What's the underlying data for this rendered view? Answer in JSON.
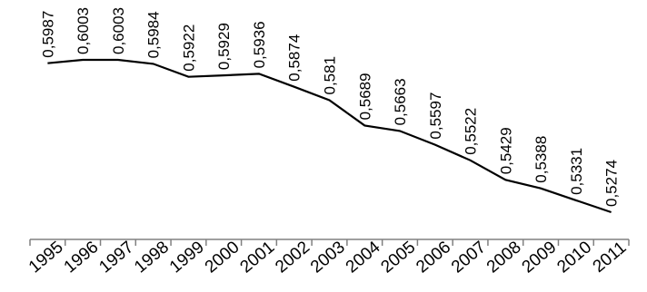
{
  "chart_data": {
    "type": "line",
    "title": "",
    "xlabel": "",
    "ylabel": "",
    "categories": [
      "1995",
      "1996",
      "1997",
      "1998",
      "1999",
      "2000",
      "2001",
      "2002",
      "2003",
      "2004",
      "2005",
      "2006",
      "2007",
      "2008",
      "2009",
      "2010",
      "2011"
    ],
    "series": [
      {
        "values": [
          0.5987,
          0.6003,
          0.6003,
          0.5984,
          0.5922,
          0.5929,
          0.5936,
          0.5874,
          0.581,
          0.5689,
          0.5663,
          0.5597,
          0.5522,
          0.5429,
          0.5388,
          0.5331,
          0.5274
        ],
        "data_labels": [
          "0,5987",
          "0,6003",
          "0,6003",
          "0,5984",
          "0,5922",
          "0,5929",
          "0,5936",
          "0,5874",
          "0,581",
          "0,5689",
          "0,5663",
          "0,5597",
          "0,5522",
          "0,5429",
          "0,5388",
          "0,5331",
          "0,5274"
        ]
      }
    ],
    "ylim": [
      0.5274,
      0.6003
    ],
    "grid": false,
    "legend": "none",
    "line_color": "#000000"
  }
}
